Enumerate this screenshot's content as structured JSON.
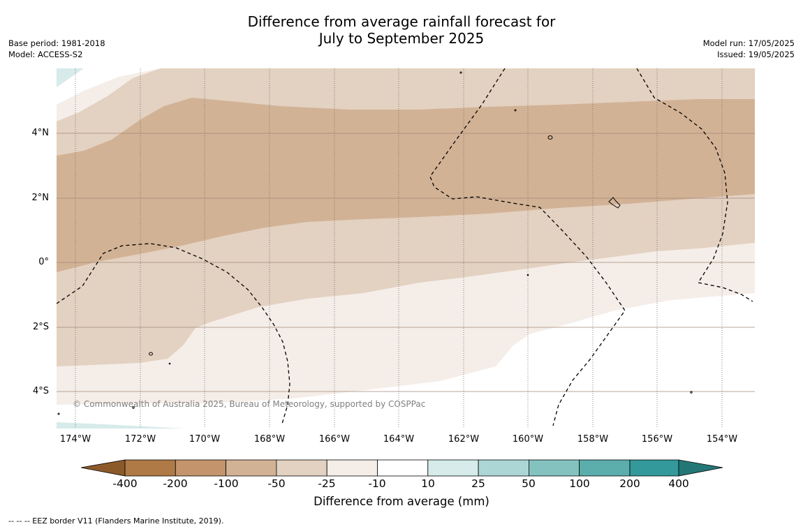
{
  "title": {
    "line1": "Difference from average rainfall forecast for",
    "line2": "July to September 2025"
  },
  "meta": {
    "base_period": "Base period: 1981-2018",
    "model": "Model: ACCESS-S2",
    "model_run": "Model run: 17/05/2025",
    "issued": "Issued: 19/05/2025"
  },
  "map": {
    "latitude_labels": [
      "4°N",
      "2°N",
      "0°",
      "2°S",
      "4°S"
    ],
    "longitude_labels": [
      "174°W",
      "172°W",
      "170°W",
      "168°W",
      "166°W",
      "164°W",
      "162°W",
      "160°W",
      "158°W",
      "156°W",
      "154°W"
    ],
    "credit": "© Commonwealth of Australia 2025, Bureau of Meteorology, supported by COSPPac"
  },
  "legend": {
    "title": "Difference from average (mm)",
    "labels": [
      "-400",
      "-200",
      "-100",
      "-50",
      "-25",
      "-10",
      "10",
      "25",
      "50",
      "100",
      "200",
      "400"
    ],
    "colors": [
      "#8c5a2a",
      "#b07a46",
      "#c4946c",
      "#d2b295",
      "#e3d1c1",
      "#f5ede8",
      "#ffffff",
      "#d6ebea",
      "#acd6d6",
      "#84c2c0",
      "#5baeab",
      "#33999a",
      "#237877"
    ]
  },
  "footnote": "--  --  -- EEZ border V11 (Flanders Marine Institute, 2019)."
}
